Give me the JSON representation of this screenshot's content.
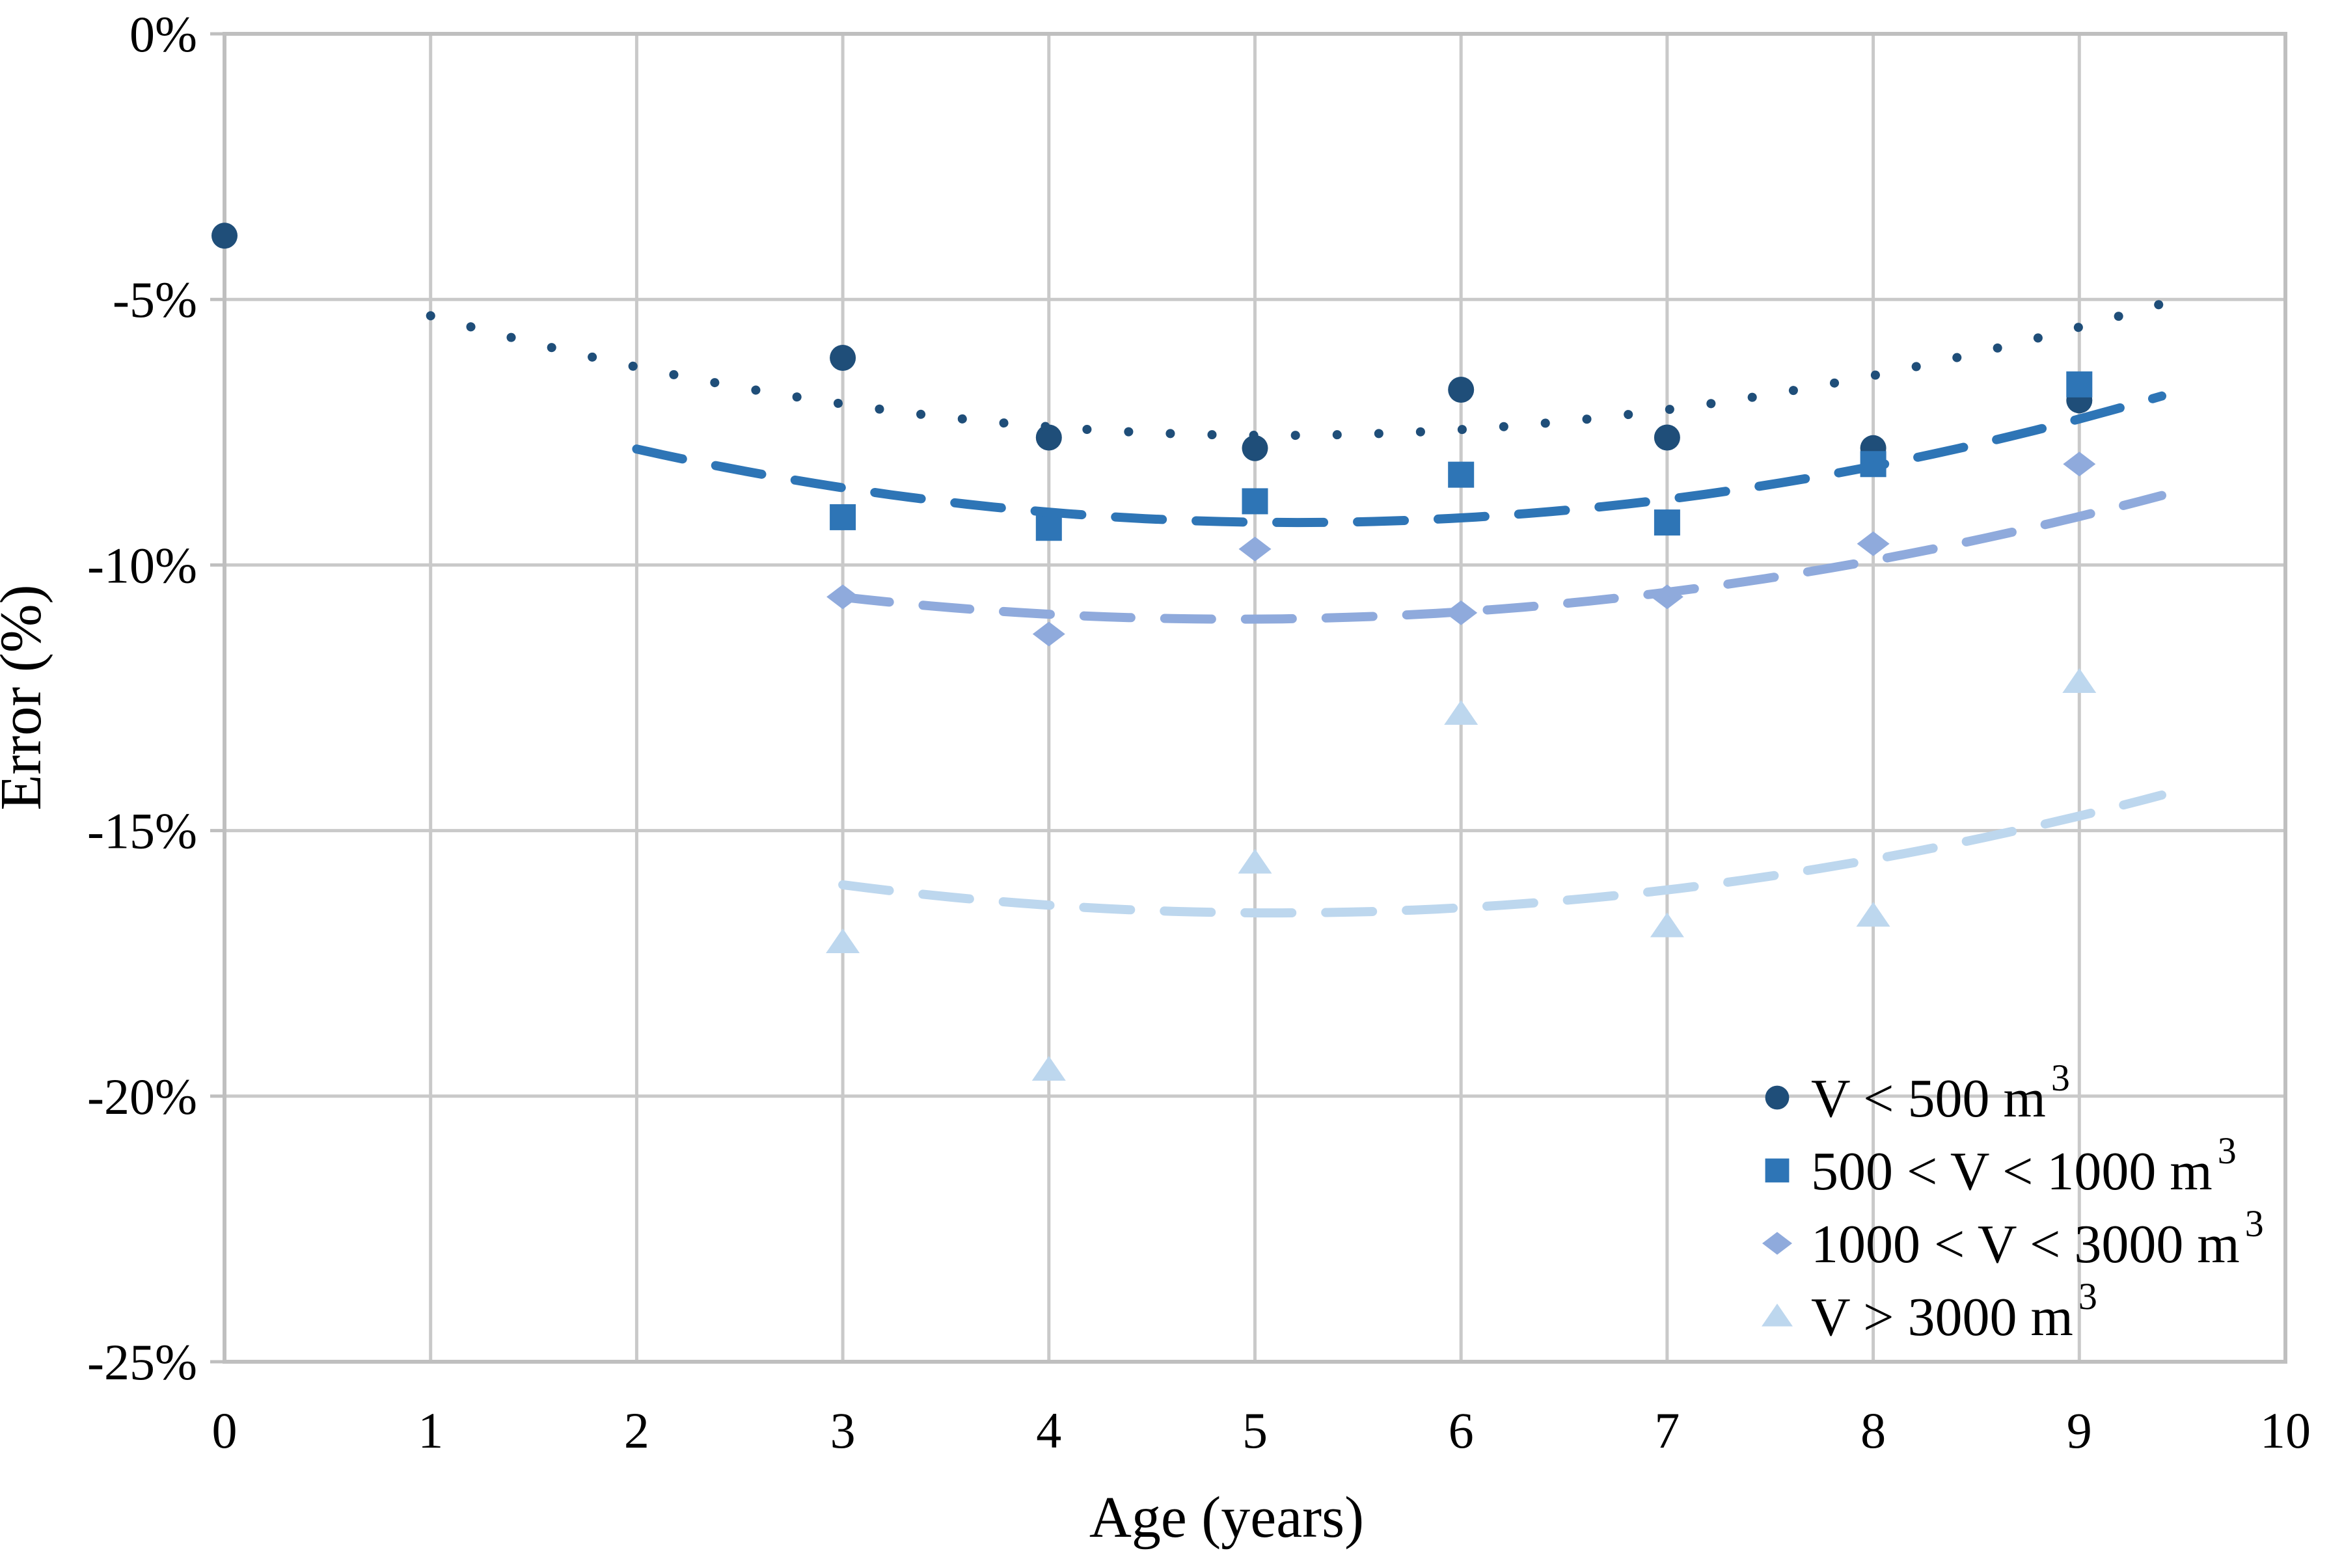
{
  "figure": {
    "background": "#FFFFFF"
  },
  "chart_data": {
    "type": "scatter",
    "title": "",
    "xlabel": "Age (years)",
    "ylabel": "Error (%)",
    "xlim": [
      0,
      10
    ],
    "ylim": [
      -25,
      0
    ],
    "grid": true,
    "legend_position": "inside-bottom-right",
    "x_ticks": [
      {
        "label": "0",
        "value": 0
      },
      {
        "label": "1",
        "value": 1
      },
      {
        "label": "2",
        "value": 2
      },
      {
        "label": "3",
        "value": 3
      },
      {
        "label": "4",
        "value": 4
      },
      {
        "label": "5",
        "value": 5
      },
      {
        "label": "6",
        "value": 6
      },
      {
        "label": "7",
        "value": 7
      },
      {
        "label": "8",
        "value": 8
      },
      {
        "label": "9",
        "value": 9
      },
      {
        "label": "10",
        "value": 10
      }
    ],
    "y_ticks": [
      {
        "label": "0%",
        "value": 0
      },
      {
        "label": "-5%",
        "value": -5
      },
      {
        "label": "-10%",
        "value": -10
      },
      {
        "label": "-15%",
        "value": -15
      },
      {
        "label": "-20%",
        "value": -20
      },
      {
        "label": "-25%",
        "value": -25
      }
    ],
    "colors": {
      "gridline": "#C9C9C9",
      "axis_border": "#BFBFBF",
      "text": "#000000"
    },
    "series": [
      {
        "name": "V < 500 m³",
        "legend_base": "V < 500 m",
        "legend_sup": "3",
        "marker": "circle",
        "color": "#1F4E79",
        "points": [
          [
            0,
            -3.8
          ],
          [
            3,
            -6.1
          ],
          [
            4,
            -7.6
          ],
          [
            5,
            -7.8
          ],
          [
            6,
            -6.7
          ],
          [
            7,
            -7.6
          ],
          [
            8,
            -7.8
          ],
          [
            9,
            -6.9
          ]
        ],
        "trend": {
          "style": "dotted",
          "a": 0.134,
          "x0": 5.1,
          "c": -7.56,
          "domain": [
            1.0,
            9.4
          ]
        }
      },
      {
        "name": "500 < V < 1000 m³",
        "legend_base": "500 < V < 1000 m",
        "legend_sup": "3",
        "marker": "square",
        "color": "#2E75B6",
        "points": [
          [
            3,
            -9.1
          ],
          [
            4,
            -9.3
          ],
          [
            5,
            -8.8
          ],
          [
            6,
            -8.3
          ],
          [
            7,
            -9.2
          ],
          [
            8,
            -8.1
          ],
          [
            9,
            -6.6
          ]
        ],
        "trend": {
          "style": "dashed",
          "a": 0.135,
          "x0": 5.2,
          "c": -9.2,
          "domain": [
            2.0,
            9.4
          ]
        }
      },
      {
        "name": "1000 < V < 3000 m³",
        "legend_base": "1000 < V < 3000 m",
        "legend_sup": "3",
        "marker": "diamond",
        "color": "#8FAADC",
        "points": [
          [
            3,
            -10.6
          ],
          [
            4,
            -11.3
          ],
          [
            5,
            -9.7
          ],
          [
            6,
            -10.9
          ],
          [
            7,
            -10.6
          ],
          [
            8,
            -9.6
          ],
          [
            9,
            -8.1
          ]
        ],
        "trend": {
          "style": "dashed",
          "a": 0.115,
          "x0": 4.9,
          "c": -11.02,
          "domain": [
            3.0,
            9.4
          ]
        }
      },
      {
        "name": "V > 3000 m³",
        "legend_base": "V > 3000 m",
        "legend_sup": "3",
        "marker": "triangle",
        "color": "#BDD7EE",
        "points": [
          [
            3,
            -17.1
          ],
          [
            4,
            -19.5
          ],
          [
            5,
            -15.6
          ],
          [
            6,
            -12.8
          ],
          [
            7,
            -16.8
          ],
          [
            8,
            -16.6
          ],
          [
            9,
            -12.2
          ]
        ],
        "trend": {
          "style": "dashed",
          "a": 0.12,
          "x0": 5.1,
          "c": -16.55,
          "domain": [
            3.0,
            9.4
          ]
        }
      }
    ]
  }
}
